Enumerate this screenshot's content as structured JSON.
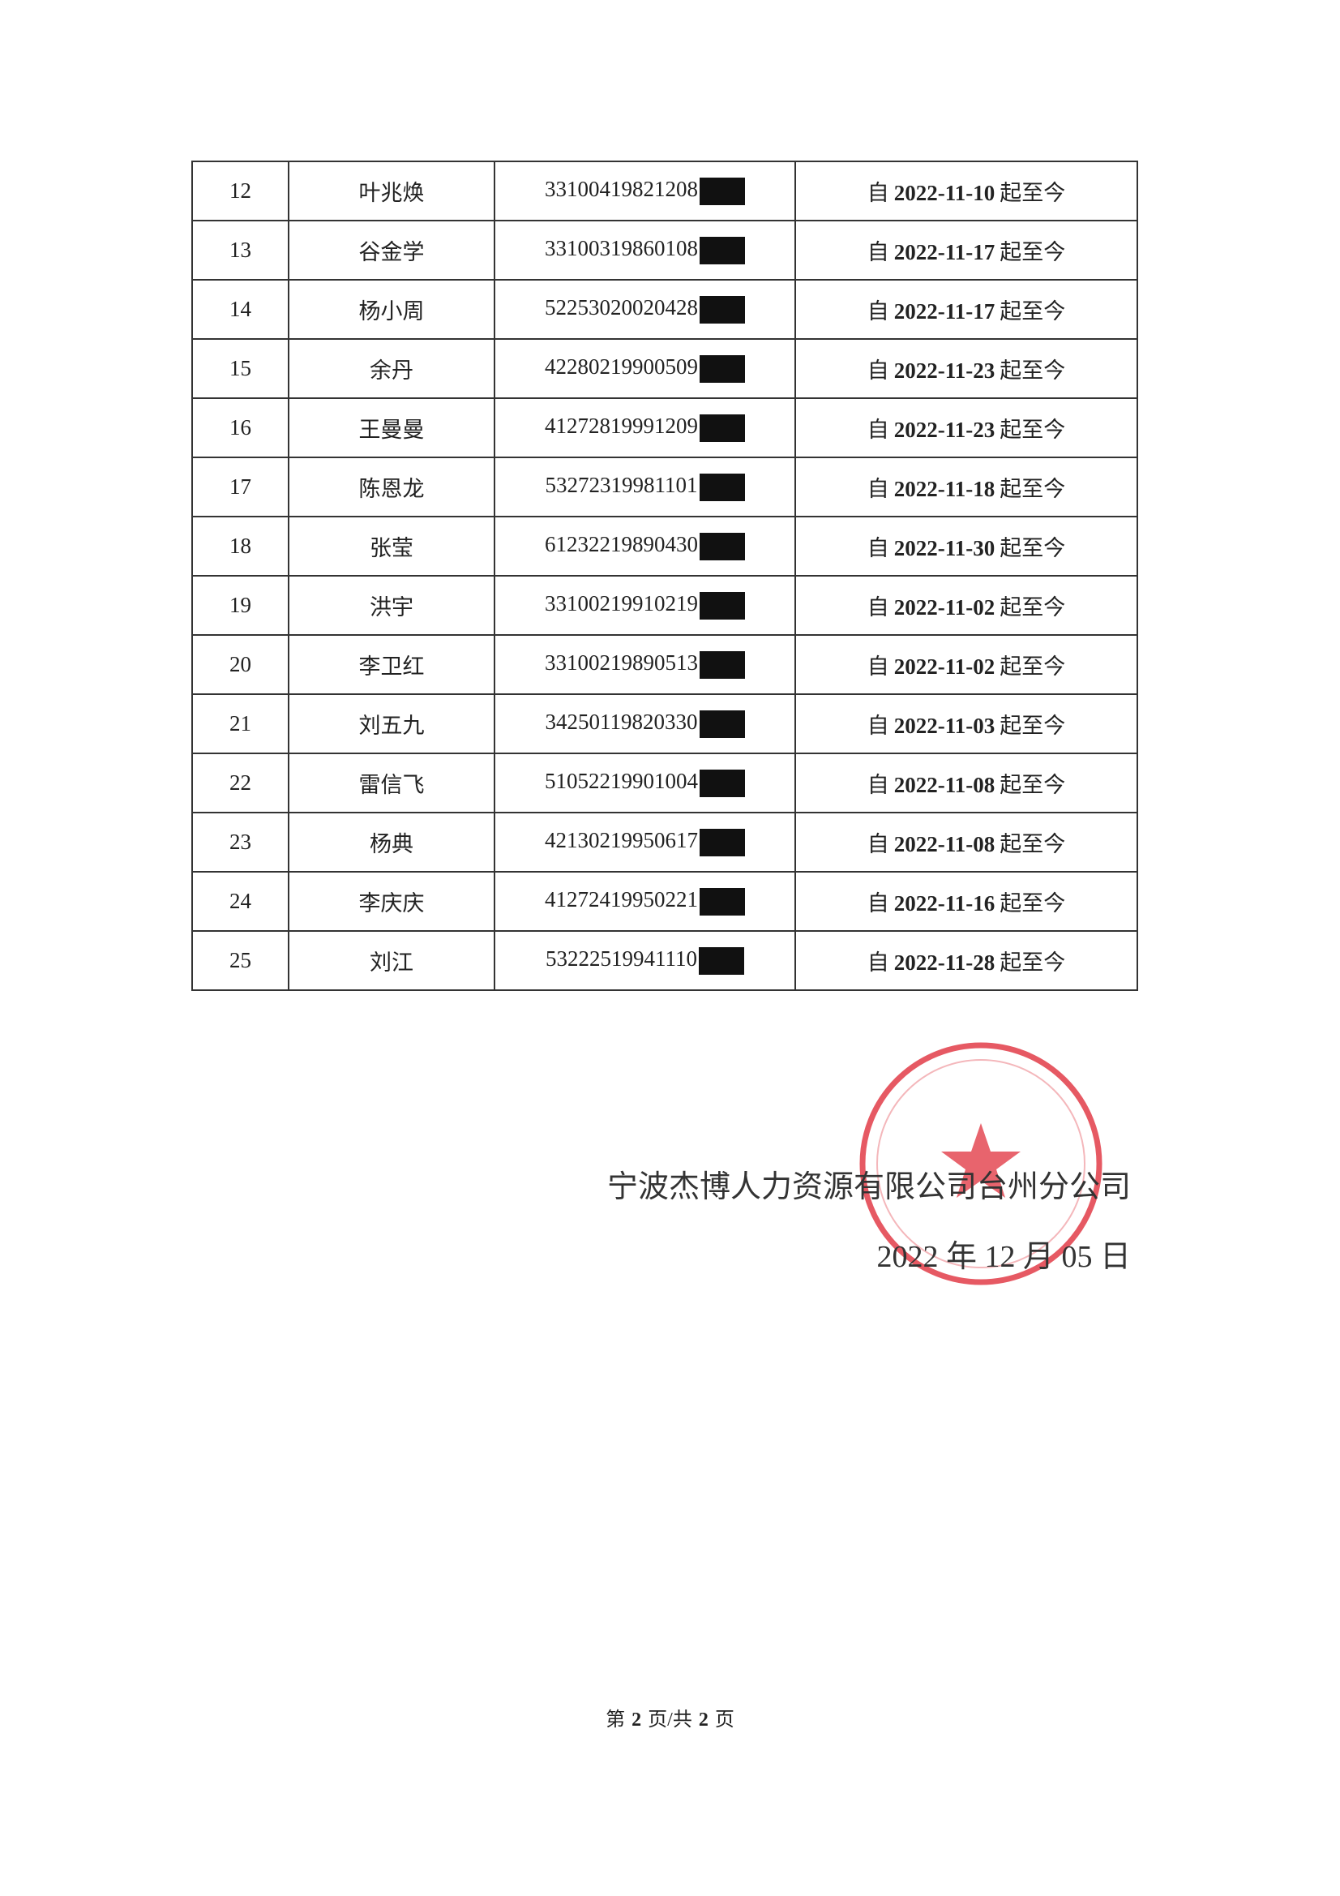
{
  "table": {
    "rows": [
      {
        "no": "12",
        "name": "叶兆焕",
        "id": "33100419821208",
        "from": "自",
        "date": "2022-11-10",
        "to": "起至今"
      },
      {
        "no": "13",
        "name": "谷金学",
        "id": "33100319860108",
        "from": "自",
        "date": "2022-11-17",
        "to": "起至今"
      },
      {
        "no": "14",
        "name": "杨小周",
        "id": "52253020020428",
        "from": "自",
        "date": "2022-11-17",
        "to": "起至今"
      },
      {
        "no": "15",
        "name": "余丹",
        "id": "42280219900509",
        "from": "自",
        "date": "2022-11-23",
        "to": "起至今"
      },
      {
        "no": "16",
        "name": "王曼曼",
        "id": "41272819991209",
        "from": "自",
        "date": "2022-11-23",
        "to": "起至今"
      },
      {
        "no": "17",
        "name": "陈恩龙",
        "id": "53272319981101",
        "from": "自",
        "date": "2022-11-18",
        "to": "起至今"
      },
      {
        "no": "18",
        "name": "张莹",
        "id": "61232219890430",
        "from": "自",
        "date": "2022-11-30",
        "to": "起至今"
      },
      {
        "no": "19",
        "name": "洪宇",
        "id": "33100219910219",
        "from": "自",
        "date": "2022-11-02",
        "to": "起至今"
      },
      {
        "no": "20",
        "name": "李卫红",
        "id": "33100219890513",
        "from": "自",
        "date": "2022-11-02",
        "to": "起至今"
      },
      {
        "no": "21",
        "name": "刘五九",
        "id": "34250119820330",
        "from": "自",
        "date": "2022-11-03",
        "to": "起至今"
      },
      {
        "no": "22",
        "name": "雷信飞",
        "id": "51052219901004",
        "from": "自",
        "date": "2022-11-08",
        "to": "起至今"
      },
      {
        "no": "23",
        "name": "杨典",
        "id": "42130219950617",
        "from": "自",
        "date": "2022-11-08",
        "to": "起至今"
      },
      {
        "no": "24",
        "name": "李庆庆",
        "id": "41272419950221",
        "from": "自",
        "date": "2022-11-16",
        "to": "起至今"
      },
      {
        "no": "25",
        "name": "刘江",
        "id": "53222519941110",
        "from": "自",
        "date": "2022-11-28",
        "to": "起至今"
      }
    ]
  },
  "signature": {
    "company": "宁波杰博人力资源有限公司台州分公司",
    "date": "2022 年 12 月 05 日"
  },
  "footer": {
    "prefix": "第",
    "page": "2",
    "middle": "页/共",
    "total": "2",
    "suffix": "页"
  }
}
